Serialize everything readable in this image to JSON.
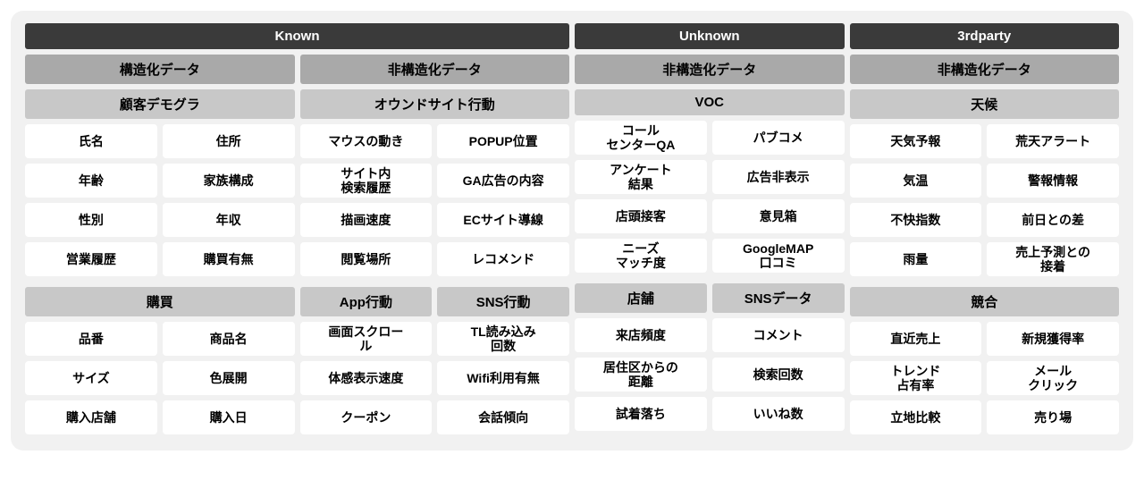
{
  "colors": {
    "page_bg": "#ffffff",
    "panel_bg": "#f1f1f1",
    "top_header_bg": "#3a3a3a",
    "top_header_fg": "#ffffff",
    "sub_header_bg": "#a9a9a9",
    "section_header_bg": "#c8c8c8",
    "cell_bg": "#ffffff",
    "text": "#000000"
  },
  "headers": {
    "known": "Known",
    "unknown": "Unknown",
    "thirdparty": "3rdparty"
  },
  "sub": {
    "col1": "構造化データ",
    "col2": "非構造化データ",
    "col3": "非構造化データ",
    "col4": "非構造化データ"
  },
  "col1": {
    "sec1": {
      "title": "顧客デモグラ",
      "rows": [
        [
          "氏名",
          "住所"
        ],
        [
          "年齢",
          "家族構成"
        ],
        [
          "性別",
          "年収"
        ],
        [
          "営業履歴",
          "購買有無"
        ]
      ]
    },
    "sec2": {
      "title": "購買",
      "rows": [
        [
          "品番",
          "商品名"
        ],
        [
          "サイズ",
          "色展開"
        ],
        [
          "購入店舗",
          "購入日"
        ]
      ]
    }
  },
  "col2": {
    "sec1": {
      "title": "オウンドサイト行動",
      "rows": [
        [
          "マウスの動き",
          "POPUP位置"
        ],
        [
          "サイト内\n検索履歴",
          "GA広告の内容"
        ],
        [
          "描画速度",
          "ECサイト導線"
        ],
        [
          "閲覧場所",
          "レコメンド"
        ]
      ]
    },
    "sec2": {
      "titles": [
        "App行動",
        "SNS行動"
      ],
      "rows": [
        [
          "画面スクロー\nル",
          "TL読み込み\n回数"
        ],
        [
          "体感表示速度",
          "Wifi利用有無"
        ],
        [
          "クーポン",
          "会話傾向"
        ]
      ]
    }
  },
  "col3": {
    "sec1": {
      "title": "VOC",
      "rows": [
        [
          "コール\nセンターQA",
          "パブコメ"
        ],
        [
          "アンケート\n結果",
          "広告非表示"
        ],
        [
          "店頭接客",
          "意見箱"
        ],
        [
          "ニーズ\nマッチ度",
          "GoogleMAP\n口コミ"
        ]
      ]
    },
    "sec2": {
      "titles": [
        "店舗",
        "SNSデータ"
      ],
      "rows": [
        [
          "来店頻度",
          "コメント"
        ],
        [
          "居住区からの\n距離",
          "検索回数"
        ],
        [
          "試着落ち",
          "いいね数"
        ]
      ]
    }
  },
  "col4": {
    "sec1": {
      "title": "天候",
      "rows": [
        [
          "天気予報",
          "荒天アラート"
        ],
        [
          "気温",
          "警報情報"
        ],
        [
          "不快指数",
          "前日との差"
        ],
        [
          "雨量",
          "売上予測との\n接着"
        ]
      ]
    },
    "sec2": {
      "title": "競合",
      "rows": [
        [
          "直近売上",
          "新規獲得率"
        ],
        [
          "トレンド\n占有率",
          "メール\nクリック"
        ],
        [
          "立地比較",
          "売り場"
        ]
      ]
    }
  }
}
